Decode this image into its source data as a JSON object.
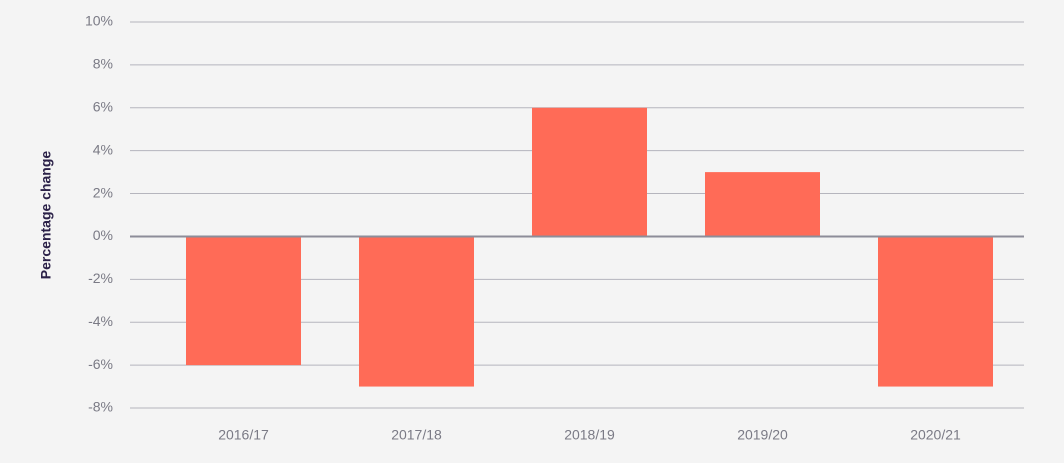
{
  "chart_data": {
    "type": "bar",
    "y_label": "Percentage change",
    "categories": [
      "2016/17",
      "2017/18",
      "2018/19",
      "2019/20",
      "2020/21"
    ],
    "values": [
      -6,
      -7,
      6,
      3,
      -7
    ],
    "color": "#ff6b57",
    "ylim": [
      -8,
      10
    ],
    "yticks": [
      {
        "value": -8,
        "label": "-8%"
      },
      {
        "value": -6,
        "label": "-6%"
      },
      {
        "value": -4,
        "label": "-4%"
      },
      {
        "value": -2,
        "label": "-2%"
      },
      {
        "value": 0,
        "label": "0%"
      },
      {
        "value": 2,
        "label": "2%"
      },
      {
        "value": 4,
        "label": "4%"
      },
      {
        "value": 6,
        "label": "6%"
      },
      {
        "value": 8,
        "label": "8%"
      },
      {
        "value": 10,
        "label": "10%"
      }
    ],
    "grid": true
  }
}
